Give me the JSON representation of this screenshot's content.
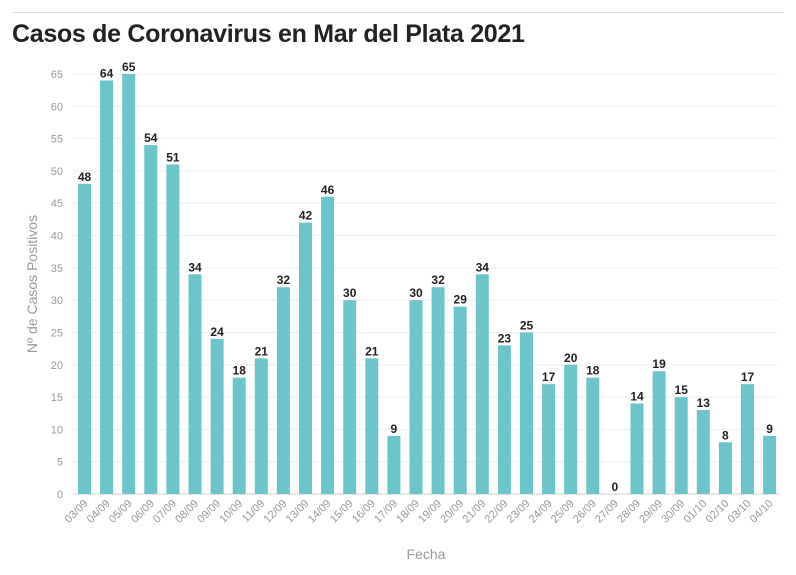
{
  "title": "Casos de Coronavirus en Mar del Plata 2021",
  "colors": {
    "bar": "#6bc5cb",
    "grid": "#eeeeee",
    "text": "#222222",
    "axis_text": "#999999"
  },
  "chart_data": {
    "type": "bar",
    "title": "Casos de Coronavirus en Mar del Plata 2021",
    "xlabel": "Fecha",
    "ylabel": "Nº de Casos Positivos",
    "ylim": [
      0,
      65
    ],
    "yticks": [
      0,
      5,
      10,
      15,
      20,
      25,
      30,
      35,
      40,
      45,
      50,
      55,
      60,
      65
    ],
    "grid": true,
    "legend": "none",
    "categories": [
      "03/09",
      "04/09",
      "05/09",
      "06/09",
      "07/09",
      "08/09",
      "09/09",
      "10/09",
      "11/09",
      "12/09",
      "13/09",
      "14/09",
      "15/09",
      "16/09",
      "17/09",
      "18/09",
      "19/09",
      "20/09",
      "21/09",
      "22/09",
      "23/09",
      "24/09",
      "25/09",
      "26/09",
      "27/09",
      "28/09",
      "29/09",
      "30/09",
      "01/10",
      "02/10",
      "03/10",
      "04/10"
    ],
    "values": [
      48,
      64,
      65,
      54,
      51,
      34,
      24,
      18,
      21,
      32,
      42,
      46,
      30,
      21,
      9,
      30,
      32,
      29,
      34,
      23,
      25,
      17,
      20,
      18,
      0,
      14,
      19,
      15,
      13,
      8,
      17,
      9
    ]
  }
}
